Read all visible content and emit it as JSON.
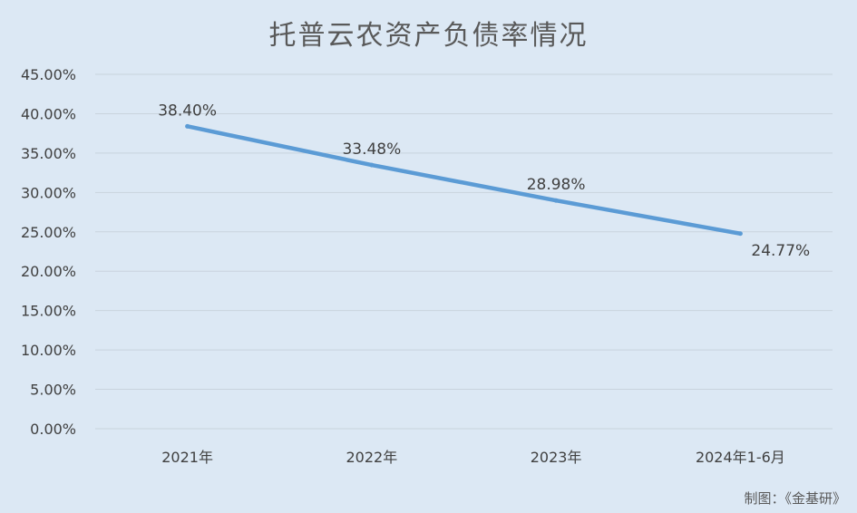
{
  "chart_data": {
    "type": "line",
    "title": "托普云农资产负债率情况",
    "categories": [
      "2021年",
      "2022年",
      "2023年",
      "2024年1-6月"
    ],
    "series": [
      {
        "values": [
          38.4,
          33.48,
          28.98,
          24.77
        ],
        "labels": [
          "38.40%",
          "33.48%",
          "28.98%",
          "24.77%"
        ],
        "color": "#5b9bd5"
      }
    ],
    "ylim": [
      0,
      45
    ],
    "yticks": [
      "0.00%",
      "5.00%",
      "10.00%",
      "15.00%",
      "20.00%",
      "25.00%",
      "30.00%",
      "35.00%",
      "40.00%",
      "45.00%"
    ],
    "grid": true,
    "legend": "none"
  },
  "footer": {
    "credit": "制图：《金基研》"
  },
  "colors": {
    "background": "#dce8f4",
    "line": "#5b9bd5",
    "grid": "#c9d3dd",
    "text": "#404040"
  }
}
